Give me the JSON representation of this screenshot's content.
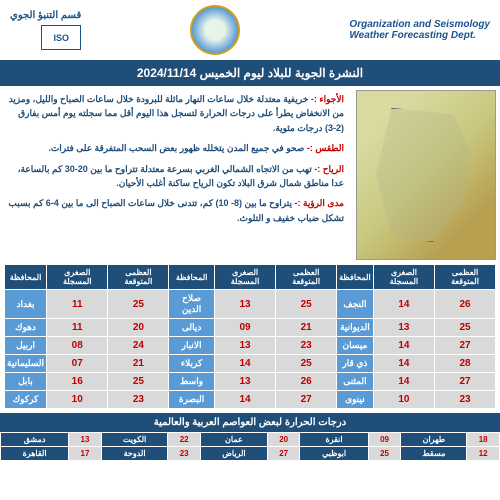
{
  "header": {
    "org_en_line1": "Organization and Seismology",
    "org_en_line2": "Weather Forecasting Dept.",
    "org_ar": "قسم التنبؤ الجوي",
    "iso": "ISO"
  },
  "title": "النشرة الجوية للبلاد ليوم الخميس 2024/11/14",
  "forecast": {
    "weather_label": "الأجواء :-",
    "weather_text": "خريفية معتدلة خلال ساعات النهار مائلة للبرودة خلال ساعات الصباح والليل، ومزيد من الانخفاض يطرأ على درجات الحرارة لتسجل هذا اليوم أقل مما سجلته يوم أمس بفارق (2-3) درجات مئوية.",
    "sky_label": "الطقس :-",
    "sky_text": "صحو في جميع المدن يتخلله ظهور بعض السحب المتفرقة على فترات.",
    "wind_label": "الرياح :-",
    "wind_text": "تهب من الاتجاه الشمالي الغربي بسرعة معتدلة تتراوح ما بين 20-30 كم بالساعة، عدا مناطق شمال شرق البلاد تكون الرياح ساكنة أغلب الأحيان.",
    "visibility_label": "مدى الرؤية :-",
    "visibility_text": "يتراوح ما بين (8- 10) كم، تتدنى خلال ساعات الصباح الى ما بين 4-6 كم بسبب تشكل ضباب خفيف و التلوث."
  },
  "table_headers": {
    "gov": "المحافظة",
    "rec_min": "الصغرى المسجلة",
    "exp_max": "العظمى المتوقعة"
  },
  "cities_left": [
    {
      "name": "بغداد",
      "min": "11",
      "max": "25"
    },
    {
      "name": "دهوك",
      "min": "11",
      "max": "20"
    },
    {
      "name": "اربيل",
      "min": "08",
      "max": "24"
    },
    {
      "name": "السليمانية",
      "min": "07",
      "max": "21"
    },
    {
      "name": "بابل",
      "min": "16",
      "max": "25"
    },
    {
      "name": "كركوك",
      "min": "10",
      "max": "23"
    }
  ],
  "cities_mid": [
    {
      "name": "صلاح الدين",
      "min": "13",
      "max": "25"
    },
    {
      "name": "ديالى",
      "min": "09",
      "max": "21"
    },
    {
      "name": "الانبار",
      "min": "13",
      "max": "23"
    },
    {
      "name": "كربلاء",
      "min": "14",
      "max": "25"
    },
    {
      "name": "واسط",
      "min": "13",
      "max": "26"
    },
    {
      "name": "البصرة",
      "min": "14",
      "max": "27"
    }
  ],
  "cities_right": [
    {
      "name": "النجف",
      "min": "14",
      "max": "26"
    },
    {
      "name": "الديوانية",
      "min": "13",
      "max": "25"
    },
    {
      "name": "ميسان",
      "min": "14",
      "max": "27"
    },
    {
      "name": "ذي قار",
      "min": "14",
      "max": "28"
    },
    {
      "name": "المثنى",
      "min": "14",
      "max": "27"
    },
    {
      "name": "نينوى",
      "min": "10",
      "max": "23"
    }
  ],
  "capitals_title": "درجات الحرارة لبعض العواصم العربية والعالمية",
  "capitals": [
    {
      "c1": "دمشق",
      "v1": "13",
      "c2": "الكويت",
      "v2": "22",
      "c3": "عمان",
      "v3": "20",
      "c4": "انقرة",
      "v4": "09",
      "c5": "طهران",
      "v5": "18"
    },
    {
      "c1": "القاهرة",
      "v1": "17",
      "c2": "الدوحة",
      "v2": "23",
      "c3": "الرياض",
      "v3": "27",
      "c4": "ابوظبي",
      "v4": "25",
      "c5": "مسقط",
      "v5": "12"
    }
  ]
}
